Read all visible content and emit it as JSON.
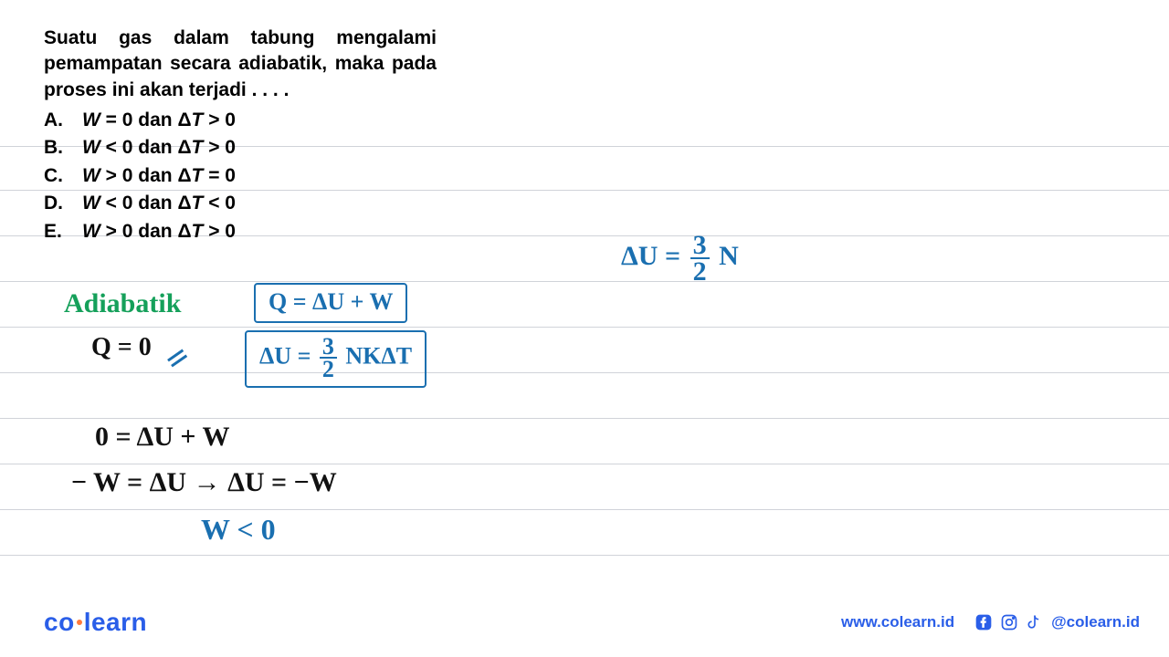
{
  "colors": {
    "ruled_line": "#b0b5bf",
    "text_black": "#000000",
    "hand_green": "#15a05a",
    "hand_blue": "#1a6fb0",
    "hand_black": "#111111",
    "brand_blue": "#2a5ee8",
    "brand_orange": "#ff7a3d",
    "background": "#ffffff"
  },
  "ruled_line_y_positions": [
    160,
    208,
    258,
    308,
    358,
    408,
    458,
    508,
    558,
    608
  ],
  "question": {
    "text": "Suatu gas dalam tabung mengalami pemampatan secara adiabatik, maka pada proses ini akan terjadi . . . .",
    "fontsize": 21,
    "options": [
      {
        "label": "A.",
        "text": "W = 0 dan ΔT > 0"
      },
      {
        "label": "B.",
        "text": "W < 0 dan ΔT > 0"
      },
      {
        "label": "C.",
        "text": "W > 0 dan ΔT = 0"
      },
      {
        "label": "D.",
        "text": "W < 0 dan ΔT < 0"
      },
      {
        "label": "E.",
        "text": "W > 0 dan ΔT > 0"
      }
    ]
  },
  "handwriting": {
    "adiabatik": "Adiabatik",
    "q_zero": "Q = 0",
    "box1": "Q = ΔU + W",
    "box2_lhs": "ΔU = ",
    "box2_frac_num": "3",
    "box2_frac_den": "2",
    "box2_rhs": " NKΔT",
    "du_eq_lhs": "ΔU = ",
    "du_frac_num": "3",
    "du_frac_den": "2",
    "du_eq_rhs": " N",
    "line1": "0 = ΔU + W",
    "line2": "− W = ΔU  →  ΔU = −W",
    "line3": "W < 0"
  },
  "footer": {
    "logo_left": "co",
    "logo_right": "learn",
    "url": "www.colearn.id",
    "handle": "@colearn.id"
  }
}
